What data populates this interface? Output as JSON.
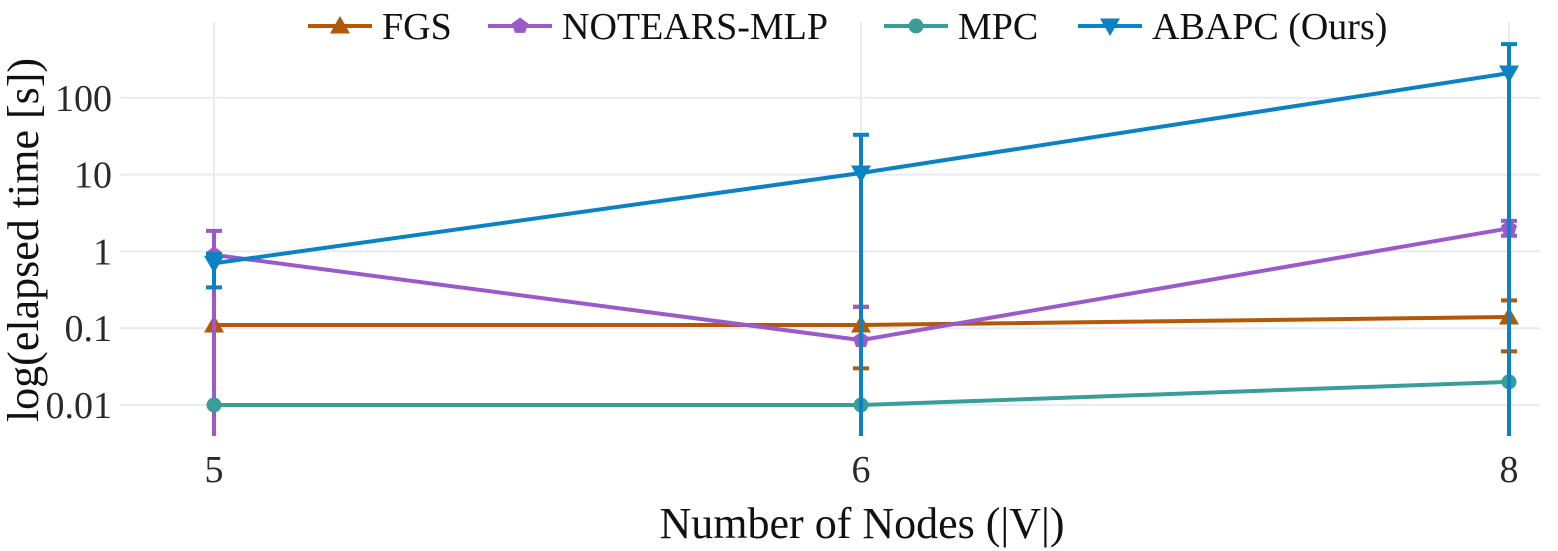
{
  "chart_data": {
    "type": "line",
    "xlabel": "Number of Nodes (|V|)",
    "ylabel": "log(elapsed time [s])",
    "y_scale": "log",
    "ylim": [
      0.004,
      800
    ],
    "x_categories": [
      5,
      6,
      8
    ],
    "y_ticks": [
      {
        "value": 0.01,
        "label": "0.01"
      },
      {
        "value": 0.1,
        "label": "0.1"
      },
      {
        "value": 1,
        "label": "1"
      },
      {
        "value": 10,
        "label": "10"
      },
      {
        "value": 100,
        "label": "100"
      }
    ],
    "grid": true,
    "legend_placement": "top",
    "series": [
      {
        "name": "FGS",
        "color": "#b35806",
        "marker": "triangle-up",
        "values": [
          0.11,
          0.11,
          0.14
        ],
        "error_low": [
          0.11,
          0.03,
          0.05
        ],
        "error_high": [
          0.11,
          0.19,
          0.23
        ]
      },
      {
        "name": "NOTEARS-MLP",
        "color": "#9b59c9",
        "marker": "pentagon",
        "values": [
          0.9,
          0.07,
          2.0
        ],
        "error_low": [
          0.003,
          0.003,
          1.6
        ],
        "error_high": [
          1.85,
          0.19,
          2.5
        ]
      },
      {
        "name": "MPC",
        "color": "#3a9e98",
        "marker": "circle",
        "values": [
          0.01,
          0.01,
          0.02
        ],
        "error_low": [
          0.01,
          0.01,
          0.02
        ],
        "error_high": [
          0.01,
          0.01,
          0.02
        ]
      },
      {
        "name": "ABAPC (Ours)",
        "color": "#0a82c3",
        "marker": "triangle-down",
        "values": [
          0.7,
          10.5,
          210
        ],
        "error_low": [
          0.34,
          0.003,
          0.003
        ],
        "error_high": [
          0.92,
          33,
          500
        ]
      }
    ]
  }
}
